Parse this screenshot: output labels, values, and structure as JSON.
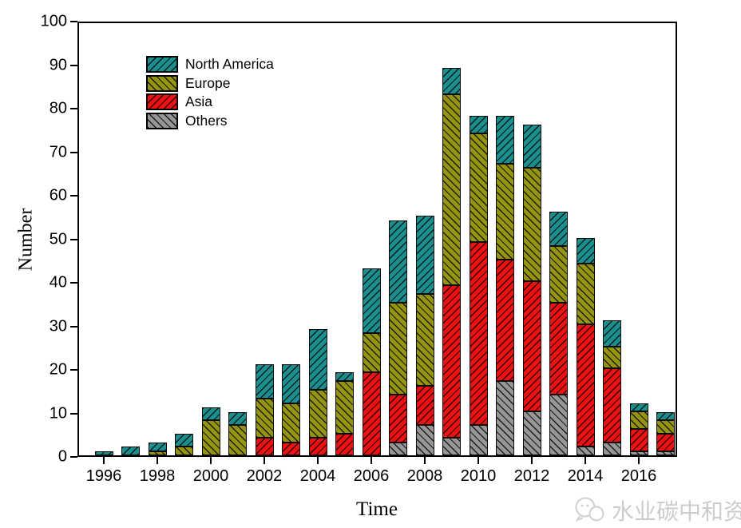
{
  "chart_data": {
    "type": "bar",
    "stacked": true,
    "title": "",
    "xlabel": "Time",
    "ylabel": "Number",
    "ylim": [
      0,
      100
    ],
    "ytick_step": 10,
    "grid": false,
    "legend_position": "upper-left-inside",
    "categories": [
      1996,
      1997,
      1998,
      1999,
      2000,
      2001,
      2002,
      2003,
      2004,
      2005,
      2006,
      2007,
      2008,
      2009,
      2010,
      2011,
      2012,
      2013,
      2014,
      2015,
      2016,
      2017
    ],
    "xtick_labels": [
      "1996",
      "1998",
      "2000",
      "2002",
      "2004",
      "2006",
      "2008",
      "2010",
      "2012",
      "2014",
      "2016"
    ],
    "series": [
      {
        "name": "Others",
        "color": "#969696",
        "hatch": "\\",
        "values": [
          0,
          0,
          0,
          0,
          0,
          0,
          0,
          0,
          0,
          0,
          0,
          3,
          7,
          4,
          7,
          17,
          10,
          14,
          2,
          3,
          1,
          1
        ]
      },
      {
        "name": "Asia",
        "color": "#ed1111",
        "hatch": "/",
        "values": [
          0,
          0,
          0,
          0,
          0,
          0,
          4,
          3,
          4,
          5,
          19,
          11,
          9,
          35,
          42,
          28,
          30,
          21,
          28,
          17,
          5,
          4
        ]
      },
      {
        "name": "Europe",
        "color": "#949410",
        "hatch": "\\",
        "values": [
          0,
          0,
          1,
          2,
          8,
          7,
          9,
          9,
          11,
          12,
          9,
          21,
          21,
          44,
          25,
          22,
          26,
          13,
          14,
          5,
          4,
          3
        ]
      },
      {
        "name": "North America",
        "color": "#1b8e8e",
        "hatch": "/",
        "values": [
          1,
          2,
          2,
          3,
          3,
          3,
          8,
          9,
          14,
          2,
          15,
          19,
          18,
          6,
          4,
          11,
          10,
          8,
          6,
          6,
          2,
          2
        ]
      }
    ],
    "totals": [
      1,
      2,
      3,
      5,
      11,
      10,
      21,
      21,
      29,
      19,
      43,
      54,
      55,
      89,
      78,
      78,
      76,
      56,
      50,
      31,
      12,
      10
    ],
    "legend_order": [
      "North America",
      "Europe",
      "Asia",
      "Others"
    ]
  },
  "watermark": {
    "text": "水业碳中和资"
  }
}
